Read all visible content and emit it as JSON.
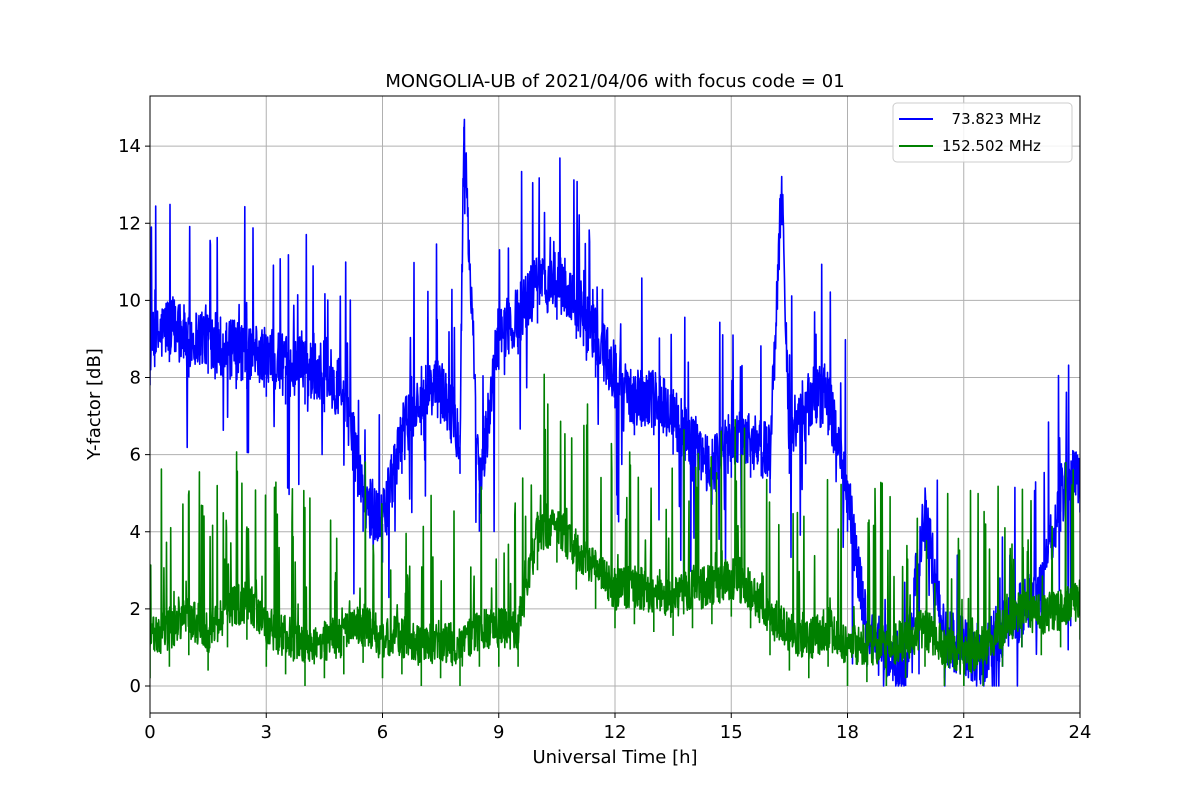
{
  "chart_data": {
    "type": "line",
    "title": "MONGOLIA-UB of 2021/04/06 with focus code = 01",
    "xlabel": "Universal Time [h]",
    "ylabel": "Y-factor [dB]",
    "xlim": [
      0,
      24
    ],
    "ylim": [
      -0.7,
      15.3
    ],
    "xticks": [
      0,
      3,
      6,
      9,
      12,
      15,
      18,
      21,
      24
    ],
    "xtick_labels": [
      "0",
      "3",
      "6",
      "9",
      "12",
      "15",
      "18",
      "21",
      "24"
    ],
    "yticks": [
      0,
      2,
      4,
      6,
      8,
      10,
      12,
      14
    ],
    "ytick_labels": [
      "0",
      "2",
      "4",
      "6",
      "8",
      "10",
      "12",
      "14"
    ],
    "grid": true,
    "legend_position": "top-right",
    "series": [
      {
        "name": "  73.823 MHz",
        "color": "#0000ff",
        "x": [
          0,
          0.5,
          1,
          1.5,
          2,
          2.5,
          3,
          3.5,
          4,
          4.5,
          5,
          5.5,
          6,
          6.5,
          7,
          7.5,
          8,
          8.1,
          8.5,
          9,
          9.5,
          10,
          10.5,
          11,
          11.5,
          12,
          12.5,
          13,
          13.5,
          14,
          14.5,
          15,
          15.5,
          16,
          16.3,
          16.5,
          17,
          17.5,
          18,
          18.5,
          19,
          19.5,
          20,
          20.5,
          21,
          21.5,
          22,
          22.5,
          23,
          23.5,
          24
        ],
        "y": [
          8.8,
          9.4,
          9.0,
          9.1,
          8.7,
          8.7,
          8.5,
          8.3,
          8.3,
          8.1,
          7.6,
          5.0,
          4.2,
          6.5,
          7.5,
          7.8,
          6.5,
          14.5,
          5.0,
          9.2,
          9.6,
          10.4,
          10.5,
          10.0,
          9.0,
          8.2,
          7.5,
          7.5,
          7.0,
          6.3,
          5.7,
          6.4,
          6.4,
          6.0,
          13.0,
          6.5,
          7.5,
          7.5,
          5.0,
          1.5,
          0.8,
          0.6,
          4.5,
          1.2,
          1.0,
          0.8,
          1.5,
          2.0,
          2.5,
          5.0,
          5.5
        ]
      },
      {
        "name": "152.502 MHz",
        "color": "#008000",
        "x": [
          0,
          0.5,
          1,
          1.5,
          2,
          2.5,
          3,
          3.5,
          4,
          4.5,
          5,
          5.5,
          6,
          6.5,
          7,
          7.5,
          8,
          8.5,
          9,
          9.5,
          10,
          10.5,
          11,
          11.5,
          12,
          12.5,
          13,
          13.5,
          14,
          14.5,
          15,
          15.5,
          16,
          16.5,
          17,
          17.5,
          18,
          18.5,
          19,
          19.5,
          20,
          20.5,
          21,
          21.5,
          22,
          22.5,
          23,
          23.5,
          24
        ],
        "y": [
          1.2,
          1.5,
          1.8,
          1.4,
          2.0,
          2.2,
          1.5,
          1.3,
          1.0,
          1.2,
          1.3,
          1.6,
          1.2,
          1.3,
          1.0,
          1.2,
          1.0,
          1.5,
          1.5,
          1.5,
          4.0,
          4.2,
          3.5,
          3.0,
          2.5,
          2.6,
          2.4,
          2.3,
          2.5,
          2.6,
          2.8,
          2.5,
          1.8,
          1.4,
          1.2,
          1.5,
          1.0,
          1.1,
          1.0,
          1.2,
          1.5,
          1.0,
          0.8,
          1.0,
          1.5,
          2.0,
          1.8,
          2.0,
          2.2
        ]
      }
    ]
  }
}
